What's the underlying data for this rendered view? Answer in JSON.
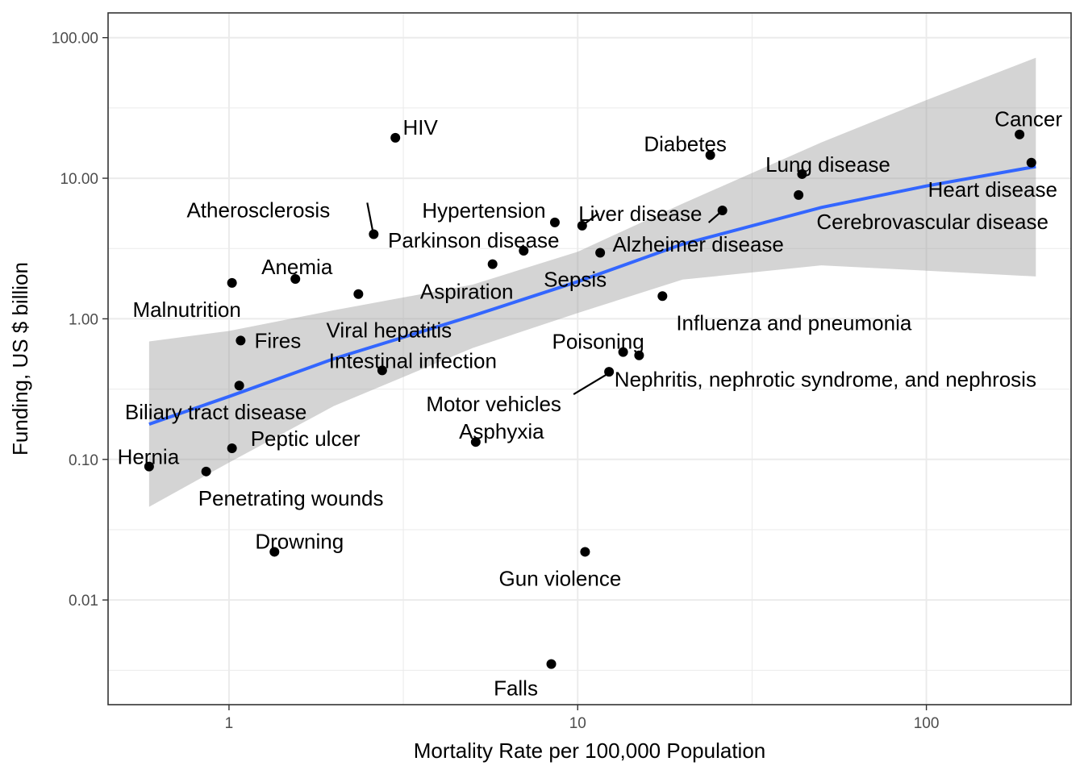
{
  "chart_data": {
    "type": "scatter",
    "xlabel": "Mortality Rate per 100,000 Population",
    "ylabel": "Funding, US $ billion",
    "x_scale": "log10",
    "y_scale": "log10",
    "xlim": [
      0.45,
      260
    ],
    "ylim": [
      0.0018,
      150
    ],
    "x_ticks": [
      {
        "v": 1,
        "label": "1"
      },
      {
        "v": 10,
        "label": "10"
      },
      {
        "v": 100,
        "label": "100"
      }
    ],
    "y_ticks": [
      {
        "v": 0.01,
        "label": "0.01"
      },
      {
        "v": 0.1,
        "label": "0.10"
      },
      {
        "v": 1,
        "label": "1.00"
      },
      {
        "v": 10,
        "label": "10.00"
      },
      {
        "v": 100,
        "label": "100.00"
      }
    ],
    "grid": true,
    "colors": {
      "point": "#000000",
      "fit_line": "#3366ff",
      "confidence_band": "#999999",
      "panel_border": "#333333",
      "grid": "#ebebeb"
    },
    "fit": {
      "method": "linear regression (log-log)",
      "x": [
        0.59,
        1.0,
        2.0,
        5.0,
        10.0,
        20.0,
        50.0,
        100.0,
        206.0
      ],
      "y": [
        0.178,
        0.28,
        0.52,
        1.05,
        1.84,
        3.4,
        6.2,
        8.8,
        12.1
      ],
      "lower": [
        0.046,
        0.095,
        0.24,
        0.62,
        1.1,
        1.9,
        2.4,
        2.2,
        2.0
      ],
      "upper": [
        0.69,
        0.82,
        1.15,
        1.75,
        3.0,
        6.6,
        18.0,
        36.0,
        72.0
      ]
    },
    "points": [
      {
        "name": "Cancer",
        "x": 185,
        "y": 20.5
      },
      {
        "name": "Heart disease",
        "x": 200,
        "y": 12.9
      },
      {
        "name": "Lung disease",
        "x": 44,
        "y": 10.7
      },
      {
        "name": "Cerebrovascular disease",
        "x": 43,
        "y": 7.6
      },
      {
        "name": "Diabetes",
        "x": 24,
        "y": 14.6
      },
      {
        "name": "Alzheimer disease",
        "x": 26,
        "y": 5.9
      },
      {
        "name": "HIV",
        "x": 3.0,
        "y": 19.4
      },
      {
        "name": "Atherosclerosis",
        "x": 2.6,
        "y": 4.0
      },
      {
        "name": "Hypertension",
        "x": 8.6,
        "y": 4.85
      },
      {
        "name": "Liver disease",
        "x": 10.3,
        "y": 4.6
      },
      {
        "name": "Parkinson disease",
        "x": 7.0,
        "y": 3.05
      },
      {
        "name": "Sepsis",
        "x": 11.6,
        "y": 2.95
      },
      {
        "name": "Aspiration",
        "x": 5.7,
        "y": 2.45
      },
      {
        "name": "Anemia",
        "x": 1.55,
        "y": 1.92
      },
      {
        "name": "Malnutrition",
        "x": 1.02,
        "y": 1.8
      },
      {
        "name": "Viral hepatitis",
        "x": 2.35,
        "y": 1.5
      },
      {
        "name": "Influenza and pneumonia",
        "x": 17.5,
        "y": 1.45
      },
      {
        "name": "Fires",
        "x": 1.08,
        "y": 0.7
      },
      {
        "name": "Poisoning",
        "x": 13.5,
        "y": 0.58
      },
      {
        "name": "Nephritis, nephrotic syndrome, and nephrosis",
        "x": 15.0,
        "y": 0.55
      },
      {
        "name": "Intestinal infection",
        "x": 2.75,
        "y": 0.43
      },
      {
        "name": "Motor vehicles",
        "x": 12.3,
        "y": 0.42
      },
      {
        "name": "Biliary tract disease",
        "x": 1.07,
        "y": 0.335
      },
      {
        "name": "Asphyxia",
        "x": 5.1,
        "y": 0.133
      },
      {
        "name": "Peptic ulcer",
        "x": 1.02,
        "y": 0.12
      },
      {
        "name": "Hernia",
        "x": 0.59,
        "y": 0.089
      },
      {
        "name": "Penetrating wounds",
        "x": 0.86,
        "y": 0.082
      },
      {
        "name": "Drowning",
        "x": 1.35,
        "y": 0.022
      },
      {
        "name": "Gun violence",
        "x": 10.5,
        "y": 0.022
      },
      {
        "name": "Falls",
        "x": 8.4,
        "y": 0.0035
      }
    ]
  }
}
